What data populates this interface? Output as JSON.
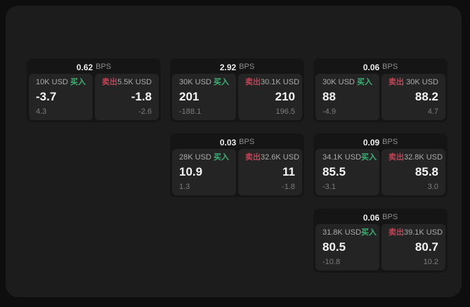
{
  "labels": {
    "bps_unit": "BPS",
    "buy": "买入",
    "sell": "卖出"
  },
  "colors": {
    "buy_accent": "#3db074",
    "sell_accent": "#bf4455",
    "panel_bg": "#1c1c1c",
    "card_bg": "#151515",
    "tile_bg": "#242424"
  },
  "cards": [
    {
      "bps": "0.62",
      "buy": {
        "amount": "10K USD",
        "price": "-3.7",
        "change": "4.3"
      },
      "sell": {
        "amount": "5.5K USD",
        "price": "-1.8",
        "change": "-2.6"
      }
    },
    {
      "bps": "2.92",
      "buy": {
        "amount": "30K USD",
        "price": "201",
        "change": "-188.1"
      },
      "sell": {
        "amount": "30.1K USD",
        "price": "210",
        "change": "196.5"
      }
    },
    {
      "bps": "0.06",
      "buy": {
        "amount": "30K USD",
        "price": "88",
        "change": "-4.9"
      },
      "sell": {
        "amount": "30K USD",
        "price": "88.2",
        "change": "4.7"
      }
    },
    {
      "bps": "0.03",
      "buy": {
        "amount": "28K USD",
        "price": "10.9",
        "change": "1.3"
      },
      "sell": {
        "amount": "32.6K USD",
        "price": "11",
        "change": "-1.8"
      }
    },
    {
      "bps": "0.09",
      "buy": {
        "amount": "34.1K USD",
        "price": "85.5",
        "change": "-3.1"
      },
      "sell": {
        "amount": "32.8K USD",
        "price": "85.8",
        "change": "3.0"
      }
    },
    {
      "bps": "0.06",
      "buy": {
        "amount": "31.8K USD",
        "price": "80.5",
        "change": "-10.8"
      },
      "sell": {
        "amount": "39.1K USD",
        "price": "80.7",
        "change": "10.2"
      }
    }
  ]
}
